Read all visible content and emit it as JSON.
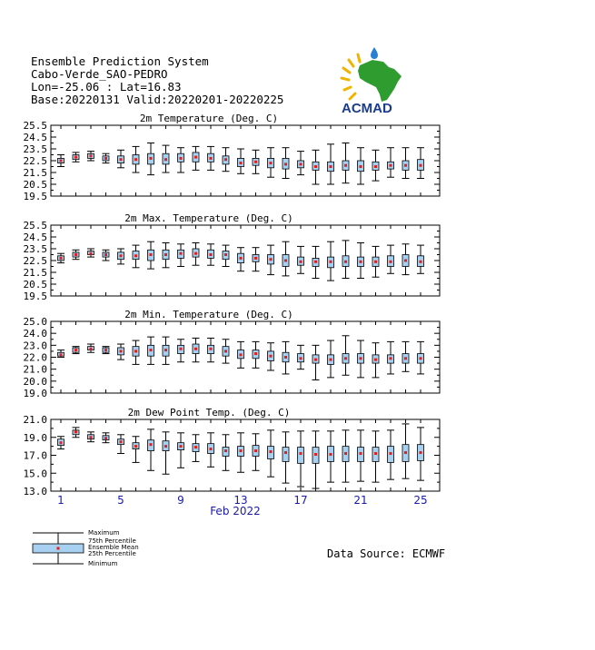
{
  "header": {
    "line1": "Ensemble Prediction System",
    "line2": "Cabo-Verde_SAO-PEDRO",
    "line3": "Lon=-25.06 : Lat=16.83",
    "line4": "Base:20220131 Valid:20220201-20220225"
  },
  "logo": {
    "text": "ACMAD",
    "colors": {
      "africa": "#2e9c2e",
      "text": "#1a3c8c",
      "rays": "#f0b400",
      "drop": "#2a7fd4"
    }
  },
  "source": "Data Source: ECMWF",
  "legend": {
    "maximum": "Maximum",
    "p75": "75th Percentile",
    "mean": "Ensemble Mean",
    "p25": "25th Percentile",
    "minimum": "Minimum"
  },
  "colors": {
    "box": "#a8d0f0",
    "mean": "#e0201c",
    "xtick": "#1a1aa8"
  },
  "chart_data": [
    {
      "type": "box",
      "title": "2m Temperature (Deg. C)",
      "ylim": [
        19.5,
        25.5
      ],
      "yticks": [
        19.5,
        20.5,
        21.5,
        22.5,
        23.5,
        24.5,
        25.5
      ],
      "days": [
        1,
        2,
        3,
        4,
        5,
        6,
        7,
        8,
        9,
        10,
        11,
        12,
        13,
        14,
        15,
        16,
        17,
        18,
        19,
        20,
        21,
        22,
        23,
        24,
        25
      ],
      "min": [
        22.0,
        22.4,
        22.5,
        22.3,
        21.9,
        21.5,
        21.3,
        21.5,
        21.5,
        21.7,
        21.7,
        21.6,
        21.4,
        21.4,
        21.1,
        21.0,
        21.3,
        20.5,
        20.5,
        20.6,
        20.5,
        20.8,
        21.1,
        21.0,
        21.0
      ],
      "p25": [
        22.3,
        22.6,
        22.7,
        22.5,
        22.3,
        22.2,
        22.2,
        22.2,
        22.4,
        22.4,
        22.4,
        22.2,
        22.0,
        22.1,
        21.9,
        21.8,
        21.9,
        21.7,
        21.6,
        21.7,
        21.6,
        21.7,
        21.8,
        21.7,
        21.7
      ],
      "mean": [
        22.5,
        22.8,
        22.9,
        22.7,
        22.6,
        22.6,
        22.7,
        22.6,
        22.7,
        22.8,
        22.7,
        22.6,
        22.3,
        22.4,
        22.3,
        22.2,
        22.2,
        22.0,
        22.0,
        22.1,
        22.0,
        22.0,
        22.1,
        22.1,
        22.1
      ],
      "p75": [
        22.7,
        23.0,
        23.1,
        22.9,
        22.9,
        23.0,
        23.1,
        23.1,
        23.1,
        23.2,
        23.1,
        22.9,
        22.7,
        22.7,
        22.7,
        22.7,
        22.5,
        22.4,
        22.4,
        22.5,
        22.5,
        22.4,
        22.4,
        22.5,
        22.6
      ],
      "max": [
        23.0,
        23.2,
        23.3,
        23.1,
        23.4,
        23.7,
        24.0,
        23.8,
        23.6,
        23.7,
        23.7,
        23.6,
        23.5,
        23.4,
        23.6,
        23.6,
        23.3,
        23.4,
        23.9,
        24.0,
        23.6,
        23.4,
        23.6,
        23.6,
        23.6
      ]
    },
    {
      "type": "box",
      "title": "2m Max. Temperature (Deg. C)",
      "ylim": [
        19.5,
        25.5
      ],
      "yticks": [
        19.5,
        20.5,
        21.5,
        22.5,
        23.5,
        24.5,
        25.5
      ],
      "days": [
        1,
        2,
        3,
        4,
        5,
        6,
        7,
        8,
        9,
        10,
        11,
        12,
        13,
        14,
        15,
        16,
        17,
        18,
        19,
        20,
        21,
        22,
        23,
        24,
        25
      ],
      "min": [
        22.3,
        22.6,
        22.8,
        22.5,
        22.2,
        21.9,
        21.8,
        21.9,
        22.0,
        22.1,
        22.1,
        22.0,
        21.6,
        21.6,
        21.3,
        21.2,
        21.4,
        21.0,
        20.8,
        21.0,
        21.0,
        21.1,
        21.4,
        21.3,
        21.4
      ],
      "p25": [
        22.5,
        22.8,
        23.0,
        22.8,
        22.6,
        22.6,
        22.5,
        22.6,
        22.7,
        22.8,
        22.7,
        22.6,
        22.3,
        22.4,
        22.2,
        22.0,
        22.1,
        22.0,
        21.9,
        22.0,
        22.0,
        22.0,
        22.0,
        22.0,
        22.0
      ],
      "mean": [
        22.7,
        23.0,
        23.1,
        23.0,
        22.9,
        22.9,
        23.0,
        23.0,
        23.1,
        23.1,
        23.0,
        23.0,
        22.7,
        22.7,
        22.6,
        22.5,
        22.4,
        22.4,
        22.4,
        22.4,
        22.4,
        22.4,
        22.4,
        22.5,
        22.4
      ],
      "p75": [
        22.9,
        23.2,
        23.3,
        23.2,
        23.2,
        23.3,
        23.4,
        23.4,
        23.4,
        23.5,
        23.4,
        23.3,
        23.1,
        23.0,
        23.0,
        23.0,
        22.8,
        22.7,
        22.8,
        22.9,
        22.8,
        22.8,
        22.9,
        23.0,
        22.9
      ],
      "max": [
        23.1,
        23.4,
        23.5,
        23.4,
        23.5,
        23.8,
        24.1,
        24.0,
        23.9,
        24.0,
        23.9,
        23.8,
        23.6,
        23.6,
        23.8,
        24.1,
        23.7,
        23.7,
        24.1,
        24.2,
        24.0,
        23.7,
        23.8,
        23.9,
        23.8
      ]
    },
    {
      "type": "box",
      "title": "2m Min. Temperature (Deg. C)",
      "ylim": [
        19.0,
        25.0
      ],
      "yticks": [
        19.0,
        20.0,
        21.0,
        22.0,
        23.0,
        24.0,
        25.0
      ],
      "days": [
        1,
        2,
        3,
        4,
        5,
        6,
        7,
        8,
        9,
        10,
        11,
        12,
        13,
        14,
        15,
        16,
        17,
        18,
        19,
        20,
        21,
        22,
        23,
        24,
        25
      ],
      "min": [
        22.0,
        22.3,
        22.4,
        22.3,
        21.8,
        21.4,
        21.4,
        21.4,
        21.6,
        21.6,
        21.6,
        21.5,
        21.1,
        21.1,
        20.9,
        20.6,
        21.0,
        20.1,
        20.3,
        20.5,
        20.3,
        20.3,
        20.6,
        20.8,
        20.6
      ],
      "p25": [
        22.1,
        22.4,
        22.6,
        22.4,
        22.2,
        22.1,
        22.1,
        22.1,
        22.3,
        22.3,
        22.3,
        22.1,
        21.9,
        21.9,
        21.7,
        21.6,
        21.6,
        21.5,
        21.4,
        21.5,
        21.5,
        21.5,
        21.5,
        21.5,
        21.5
      ],
      "mean": [
        22.2,
        22.6,
        22.7,
        22.6,
        22.5,
        22.5,
        22.6,
        22.6,
        22.7,
        22.7,
        22.7,
        22.5,
        22.2,
        22.3,
        22.1,
        22.0,
        21.9,
        21.8,
        21.8,
        21.9,
        21.9,
        21.8,
        21.9,
        21.9,
        21.9
      ],
      "p75": [
        22.4,
        22.8,
        22.9,
        22.8,
        22.8,
        22.9,
        23.0,
        23.0,
        23.0,
        23.1,
        23.0,
        22.9,
        22.6,
        22.6,
        22.5,
        22.4,
        22.3,
        22.2,
        22.2,
        22.3,
        22.3,
        22.2,
        22.2,
        22.3,
        22.3
      ],
      "max": [
        22.6,
        22.9,
        23.1,
        22.9,
        23.1,
        23.4,
        23.7,
        23.7,
        23.5,
        23.6,
        23.6,
        23.5,
        23.3,
        23.3,
        23.2,
        23.3,
        23.0,
        23.0,
        23.4,
        23.8,
        23.4,
        23.2,
        23.3,
        23.3,
        23.3
      ]
    },
    {
      "type": "box",
      "title": "2m Dew Point Temp. (Deg. C)",
      "ylim": [
        13.0,
        21.0
      ],
      "yticks": [
        13.0,
        15.0,
        17.0,
        19.0,
        21.0
      ],
      "days": [
        1,
        2,
        3,
        4,
        5,
        6,
        7,
        8,
        9,
        10,
        11,
        12,
        13,
        14,
        15,
        16,
        17,
        18,
        19,
        20,
        21,
        22,
        23,
        24,
        25
      ],
      "min": [
        17.7,
        19.0,
        18.5,
        18.4,
        17.2,
        16.2,
        15.3,
        14.9,
        15.6,
        16.3,
        15.7,
        15.3,
        15.1,
        15.3,
        14.6,
        13.9,
        13.5,
        13.3,
        14.0,
        14.0,
        14.1,
        14.0,
        14.3,
        14.4,
        14.2
      ],
      "p25": [
        18.1,
        19.3,
        18.8,
        18.7,
        18.2,
        17.7,
        17.5,
        17.5,
        17.6,
        17.4,
        17.2,
        16.9,
        16.9,
        16.9,
        16.6,
        16.3,
        16.1,
        16.1,
        16.3,
        16.3,
        16.3,
        16.3,
        16.2,
        16.3,
        16.4
      ],
      "mean": [
        18.4,
        19.6,
        19.0,
        18.9,
        18.5,
        18.0,
        18.2,
        18.0,
        18.0,
        17.9,
        17.7,
        17.5,
        17.5,
        17.5,
        17.4,
        17.3,
        17.2,
        17.1,
        17.1,
        17.2,
        17.2,
        17.2,
        17.2,
        17.3,
        17.3
      ],
      "p75": [
        18.8,
        19.8,
        19.3,
        19.2,
        18.8,
        18.4,
        18.7,
        18.6,
        18.4,
        18.3,
        18.3,
        17.9,
        18.0,
        18.1,
        18.0,
        17.9,
        17.9,
        17.9,
        18.0,
        18.0,
        17.9,
        17.9,
        18.0,
        18.2,
        18.2
      ],
      "max": [
        19.1,
        20.1,
        19.6,
        19.5,
        19.3,
        19.1,
        19.9,
        19.6,
        19.5,
        19.3,
        19.5,
        19.3,
        19.5,
        19.4,
        19.8,
        19.6,
        19.7,
        19.7,
        19.7,
        19.8,
        19.8,
        19.7,
        19.8,
        20.5,
        20.1
      ]
    }
  ],
  "xaxis": {
    "ticks": [
      "1",
      "5",
      "9",
      "13",
      "17",
      "21",
      "25"
    ],
    "label": "Feb 2022"
  }
}
